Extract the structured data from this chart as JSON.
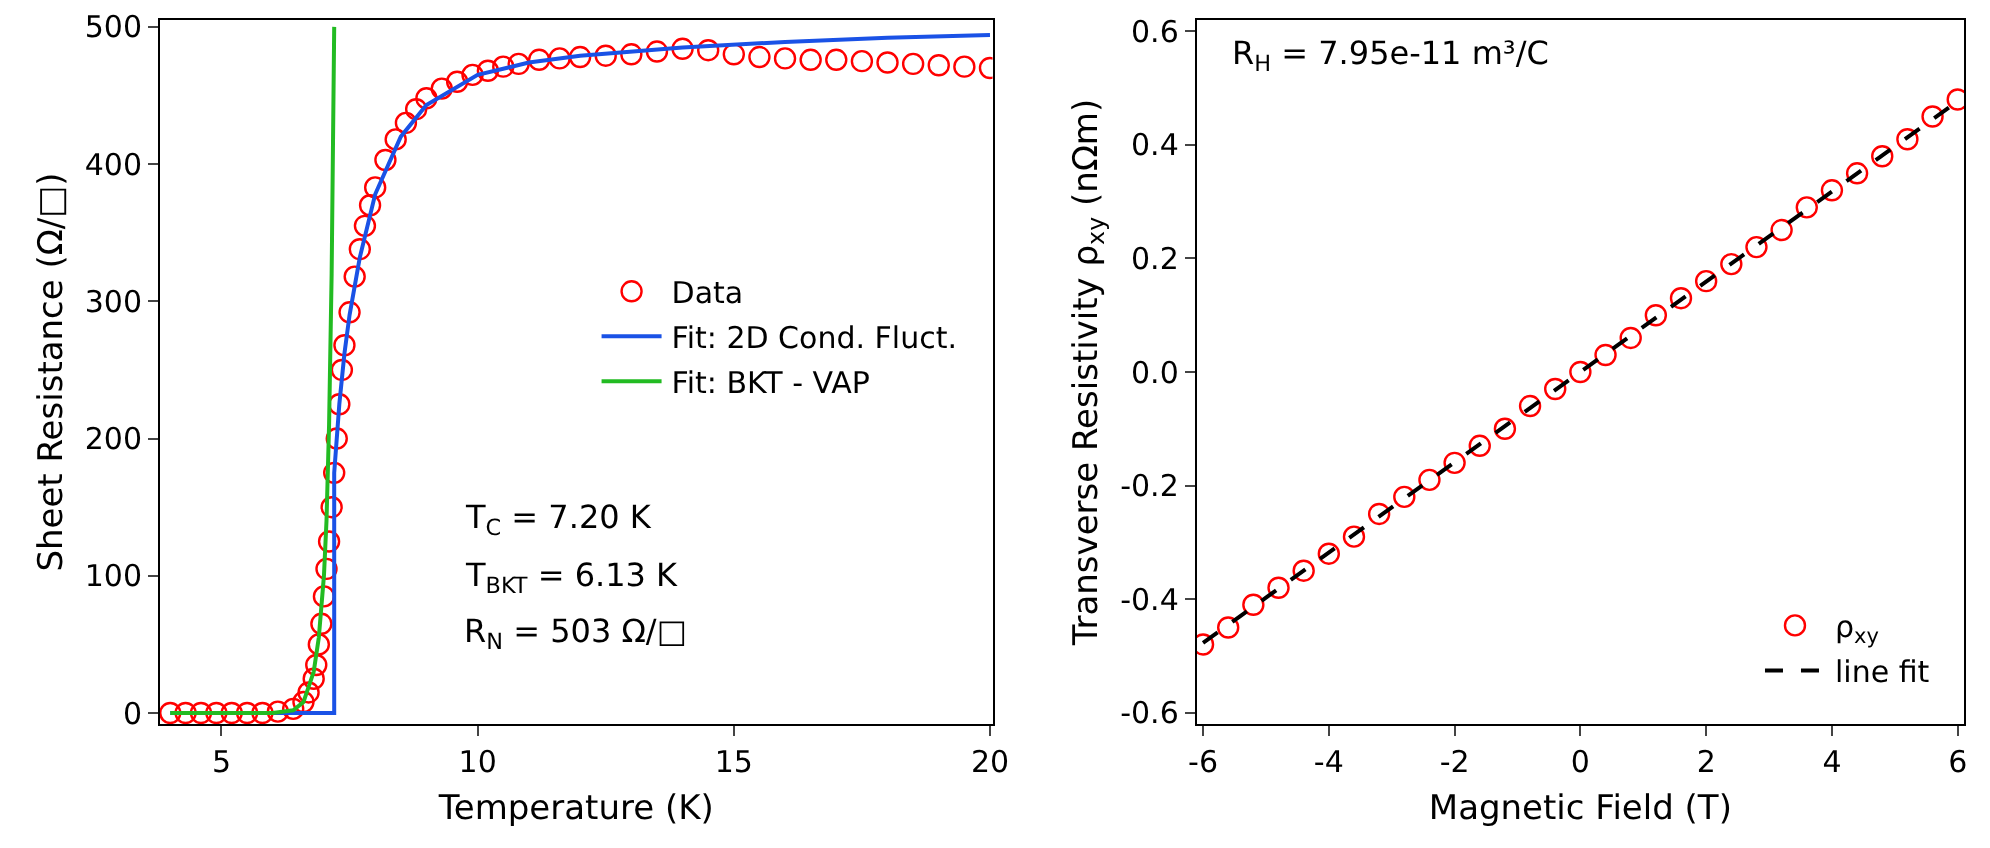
{
  "chart_data": [
    {
      "type": "scatter",
      "xlabel": "Temperature (K)",
      "ylabel": "Sheet Resistance (Ω/□)",
      "xlim": [
        3.8,
        20.05
      ],
      "xticks": [
        5,
        10,
        15,
        20
      ],
      "ylim": [
        -8,
        505
      ],
      "yticks": [
        0,
        100,
        200,
        300,
        400,
        500
      ],
      "legend": "right",
      "annotations": [
        "T$_{C}$ = 7.20 K",
        "T$_{BKT}$ = 6.13 K",
        "R$_{N}$ = 503 Ω/□"
      ],
      "series": [
        {
          "name": "Data",
          "marker": "circle",
          "color": "#ff0000",
          "x": [
            4.0,
            4.3,
            4.6,
            4.9,
            5.2,
            5.5,
            5.8,
            6.1,
            6.4,
            6.6,
            6.7,
            6.8,
            6.85,
            6.9,
            6.95,
            7.0,
            7.05,
            7.1,
            7.15,
            7.2,
            7.25,
            7.3,
            7.35,
            7.4,
            7.5,
            7.6,
            7.7,
            7.8,
            7.9,
            8.0,
            8.2,
            8.4,
            8.6,
            8.8,
            9.0,
            9.3,
            9.6,
            9.9,
            10.2,
            10.5,
            10.8,
            11.2,
            11.6,
            12.0,
            12.5,
            13.0,
            13.5,
            14.0,
            14.5,
            15.0,
            15.5,
            16.0,
            16.5,
            17.0,
            17.5,
            18.0,
            18.5,
            19.0,
            19.5,
            20.0
          ],
          "values": [
            0,
            0,
            0,
            0,
            0,
            0,
            0,
            1,
            3,
            8,
            15,
            25,
            35,
            50,
            65,
            85,
            105,
            125,
            150,
            175,
            200,
            225,
            250,
            268,
            292,
            318,
            338,
            355,
            370,
            383,
            403,
            418,
            430,
            440,
            448,
            455,
            460,
            465,
            468,
            471,
            473,
            476,
            477,
            478,
            479,
            480,
            482,
            484,
            483,
            480,
            478,
            477,
            476,
            476,
            475,
            474,
            473,
            472,
            471,
            470
          ]
        },
        {
          "name": "Fit: 2D Cond. Fluct.",
          "type": "line",
          "marker": "none",
          "color": "#1a52e6",
          "x": [
            4.0,
            7.2,
            7.2,
            7.3,
            7.4,
            7.5,
            7.7,
            8.0,
            8.5,
            9.0,
            10.0,
            11.0,
            12.0,
            14.0,
            16.0,
            18.0,
            20.0
          ],
          "values": [
            0,
            0,
            175,
            225,
            262,
            290,
            332,
            378,
            420,
            443,
            465,
            474,
            479,
            485,
            489,
            492,
            494
          ]
        },
        {
          "name": "Fit: BKT - VAP",
          "type": "line",
          "marker": "none",
          "color": "#22bb22",
          "x": [
            4.0,
            6.0,
            6.4,
            6.6,
            6.8,
            6.9,
            7.0,
            7.05,
            7.1,
            7.15,
            7.2
          ],
          "values": [
            0,
            0,
            2,
            8,
            30,
            55,
            100,
            140,
            210,
            320,
            500
          ]
        }
      ]
    },
    {
      "type": "scatter",
      "xlabel": "Magnetic Field (T)",
      "ylabel": "Transverse Resistivity ρ$_{xy}$ (nΩm)",
      "xlim": [
        -6.1,
        6.1
      ],
      "xticks": [
        -6,
        -4,
        -2,
        0,
        2,
        4,
        6
      ],
      "ylim": [
        -0.62,
        0.62
      ],
      "yticks": [
        {
          "value": -0.6,
          "label": "-0.6"
        },
        {
          "value": -0.4,
          "label": "-0.4"
        },
        {
          "value": -0.2,
          "label": "-0.2"
        },
        {
          "value": 0,
          "label": "0.0"
        },
        {
          "value": 0.2,
          "label": "0.2"
        },
        {
          "value": 0.4,
          "label": "0.4"
        },
        {
          "value": 0.6,
          "label": "0.6"
        }
      ],
      "legend": "bottom right",
      "annotations": [
        "R$_{H}$ = 7.95e-11 m³/C"
      ],
      "series": [
        {
          "name": "ρ$_{xy}$",
          "marker": "circle",
          "color": "#ff0000",
          "x": [
            -6.0,
            -5.6,
            -5.2,
            -4.8,
            -4.4,
            -4.0,
            -3.6,
            -3.2,
            -2.8,
            -2.4,
            -2.0,
            -1.6,
            -1.2,
            -0.8,
            -0.4,
            0.0,
            0.4,
            0.8,
            1.2,
            1.6,
            2.0,
            2.4,
            2.8,
            3.2,
            3.6,
            4.0,
            4.4,
            4.8,
            5.2,
            5.6,
            6.0
          ],
          "values": [
            -0.48,
            -0.45,
            -0.41,
            -0.38,
            -0.35,
            -0.32,
            -0.29,
            -0.25,
            -0.22,
            -0.19,
            -0.16,
            -0.13,
            -0.1,
            -0.06,
            -0.03,
            0.0,
            0.03,
            0.06,
            0.1,
            0.13,
            0.16,
            0.19,
            0.22,
            0.25,
            0.29,
            0.32,
            0.35,
            0.38,
            0.41,
            0.45,
            0.48
          ]
        },
        {
          "name": "line fit",
          "type": "line",
          "marker": "none",
          "line_style": "dashed",
          "color": "#000000",
          "x": [
            -6.0,
            6.0
          ],
          "values": [
            -0.477,
            0.477
          ]
        }
      ]
    }
  ]
}
